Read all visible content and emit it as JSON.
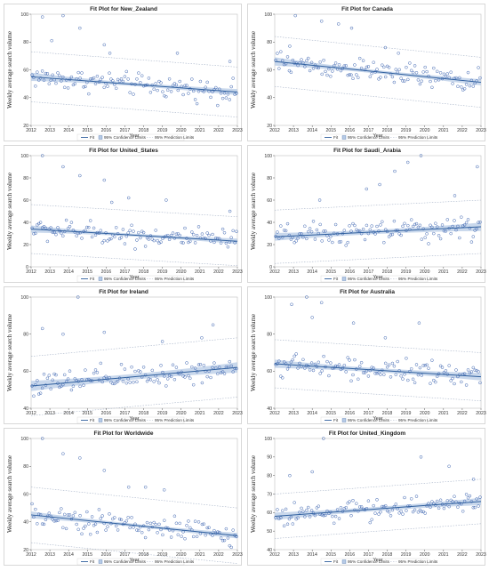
{
  "colors": {
    "band": "#b7cbe6",
    "fit": "#2f5f9e",
    "point": "#3b63b0",
    "prediction": "#a9b5c9",
    "frame": "#bfbfbf"
  },
  "legend": {
    "fit": "Fit",
    "confidence": "95% Confidence Limits",
    "prediction": "95% Prediction Limits"
  },
  "chart_data": [
    {
      "type": "scatter",
      "title": "Fit Plot for New_Zealand",
      "xlabel": "Year",
      "ylabel": "Weekly average search volume",
      "xlim": [
        2012,
        2023
      ],
      "ylim": [
        20,
        100
      ],
      "yticks": [
        20,
        40,
        60,
        80,
        100
      ],
      "xticks": [
        2012,
        2013,
        2014,
        2015,
        2016,
        2017,
        2018,
        2019,
        2020,
        2021,
        2022,
        2023
      ],
      "fit": {
        "x": [
          2012,
          2023
        ],
        "y": [
          55,
          44
        ]
      },
      "confidence_halfwidth": [
        3,
        2.2
      ],
      "prediction": {
        "lower": [
          37,
          26
        ],
        "upper": [
          73,
          62
        ]
      },
      "outliers": {
        "x": [
          2012.6,
          2013.7,
          2014.6,
          2015.9,
          2016.2,
          2013.1,
          2019.8,
          2022.6
        ],
        "y": [
          98,
          99,
          90,
          78,
          72,
          81,
          72,
          66
        ]
      }
    },
    {
      "type": "scatter",
      "title": "Fit Plot for Canada",
      "xlabel": "Year",
      "ylabel": "Weekly average search volume",
      "xlim": [
        2012,
        2023
      ],
      "ylim": [
        20,
        100
      ],
      "yticks": [
        20,
        40,
        60,
        80,
        100
      ],
      "xticks": [
        2012,
        2013,
        2014,
        2015,
        2016,
        2017,
        2018,
        2019,
        2020,
        2021,
        2022,
        2023
      ],
      "fit": {
        "x": [
          2012,
          2023
        ],
        "y": [
          66,
          51
        ]
      },
      "confidence_halfwidth": [
        3,
        2.2
      ],
      "prediction": {
        "lower": [
          48,
          33
        ],
        "upper": [
          84,
          69
        ]
      },
      "outliers": {
        "x": [
          2013.1,
          2014.5,
          2015.4,
          2016.1,
          2017.9,
          2018.6,
          2012.8
        ],
        "y": [
          99,
          95,
          93,
          90,
          76,
          72,
          77
        ]
      }
    },
    {
      "type": "scatter",
      "title": "Fit Plot for United_States",
      "xlabel": "Year",
      "ylabel": "Weekly average search volume",
      "xlim": [
        2012,
        2023
      ],
      "ylim": [
        0,
        100
      ],
      "yticks": [
        0,
        20,
        40,
        60,
        80,
        100
      ],
      "xticks": [
        2012,
        2013,
        2014,
        2015,
        2016,
        2017,
        2018,
        2019,
        2020,
        2021,
        2022,
        2023
      ],
      "fit": {
        "x": [
          2012,
          2023
        ],
        "y": [
          34,
          23
        ]
      },
      "confidence_halfwidth": [
        3.2,
        2.4
      ],
      "prediction": {
        "lower": [
          12,
          1
        ],
        "upper": [
          56,
          45
        ]
      },
      "outliers": {
        "x": [
          2012.6,
          2013.7,
          2014.6,
          2015.9,
          2017.2,
          2019.2,
          2022.6,
          2016.3
        ],
        "y": [
          100,
          90,
          82,
          78,
          62,
          60,
          50,
          58
        ]
      }
    },
    {
      "type": "scatter",
      "title": "Fit Plot for Saudi_Arabia",
      "xlabel": "Year",
      "ylabel": "Weekly average search volume",
      "xlim": [
        2012,
        2023
      ],
      "ylim": [
        0,
        100
      ],
      "yticks": [
        0,
        20,
        40,
        60,
        80,
        100
      ],
      "xticks": [
        2012,
        2013,
        2014,
        2015,
        2016,
        2017,
        2018,
        2019,
        2020,
        2021,
        2022,
        2023
      ],
      "fit": {
        "x": [
          2012,
          2023
        ],
        "y": [
          27,
          36
        ]
      },
      "confidence_halfwidth": [
        3.5,
        3.8
      ],
      "prediction": {
        "lower": [
          3,
          12
        ],
        "upper": [
          51,
          60
        ]
      },
      "outliers": {
        "x": [
          2019.8,
          2019.1,
          2018.4,
          2017.6,
          2022.8,
          2016.9,
          2014.4,
          2021.6
        ],
        "y": [
          100,
          94,
          86,
          74,
          90,
          70,
          60,
          64
        ]
      }
    },
    {
      "type": "scatter",
      "title": "Fit Plot for Ireland",
      "xlabel": "Year",
      "ylabel": "Weekly average search volume",
      "xlim": [
        2012,
        2023
      ],
      "ylim": [
        40,
        100
      ],
      "yticks": [
        40,
        60,
        80,
        100
      ],
      "xticks": [
        2012,
        2013,
        2014,
        2015,
        2016,
        2017,
        2018,
        2019,
        2020,
        2021,
        2022,
        2023
      ],
      "fit": {
        "x": [
          2012,
          2023
        ],
        "y": [
          52,
          62
        ]
      },
      "confidence_halfwidth": [
        2.8,
        2.8
      ],
      "prediction": {
        "lower": [
          36,
          46
        ],
        "upper": [
          68,
          78
        ]
      },
      "outliers": {
        "x": [
          2014.5,
          2012.6,
          2013.7,
          2021.7,
          2021.1,
          2019.0,
          2015.9
        ],
        "y": [
          100,
          83,
          80,
          85,
          78,
          76,
          81
        ]
      }
    },
    {
      "type": "scatter",
      "title": "Fit Plot for Australia",
      "xlabel": "Year",
      "ylabel": "Weekly average search volume",
      "xlim": [
        2012,
        2023
      ],
      "ylim": [
        40,
        100
      ],
      "yticks": [
        40,
        60,
        80,
        100
      ],
      "xticks": [
        2012,
        2013,
        2014,
        2015,
        2016,
        2017,
        2018,
        2019,
        2020,
        2021,
        2022,
        2023
      ],
      "fit": {
        "x": [
          2012,
          2023
        ],
        "y": [
          64,
          57
        ]
      },
      "confidence_halfwidth": [
        2.2,
        2.0
      ],
      "prediction": {
        "lower": [
          51,
          44
        ],
        "upper": [
          77,
          70
        ]
      },
      "outliers": {
        "x": [
          2013.7,
          2014.5,
          2012.9,
          2014.0,
          2016.2,
          2017.9,
          2019.7
        ],
        "y": [
          100,
          97,
          96,
          89,
          86,
          78,
          86
        ]
      }
    },
    {
      "type": "scatter",
      "title": "Fit Plot for Worldwide",
      "xlabel": "Year",
      "ylabel": "Weekly average search volume",
      "xlim": [
        2012,
        2023
      ],
      "ylim": [
        20,
        100
      ],
      "yticks": [
        20,
        40,
        60,
        80,
        100
      ],
      "xticks": [
        2012,
        2013,
        2014,
        2015,
        2016,
        2017,
        2018,
        2019,
        2020,
        2021,
        2022,
        2023
      ],
      "fit": {
        "x": [
          2012,
          2023
        ],
        "y": [
          45,
          30
        ]
      },
      "confidence_halfwidth": [
        2.5,
        2.0
      ],
      "prediction": {
        "lower": [
          25,
          10
        ],
        "upper": [
          65,
          50
        ]
      },
      "outliers": {
        "x": [
          2012.6,
          2013.7,
          2014.6,
          2015.9,
          2017.2,
          2018.1,
          2019.1
        ],
        "y": [
          100,
          89,
          86,
          77,
          65,
          65,
          63
        ]
      }
    },
    {
      "type": "scatter",
      "title": "Fit Plot for United_Kingdom",
      "xlabel": "Year",
      "ylabel": "Weekly average search volume",
      "xlim": [
        2012,
        2023
      ],
      "ylim": [
        40,
        100
      ],
      "yticks": [
        40,
        50,
        60,
        70,
        80,
        90,
        100
      ],
      "xticks": [
        2012,
        2013,
        2014,
        2015,
        2016,
        2017,
        2018,
        2019,
        2020,
        2021,
        2022,
        2023
      ],
      "fit": {
        "x": [
          2012,
          2023
        ],
        "y": [
          58,
          66
        ]
      },
      "confidence_halfwidth": [
        2.0,
        2.0
      ],
      "prediction": {
        "lower": [
          46,
          54
        ],
        "upper": [
          70,
          78
        ]
      },
      "outliers": {
        "x": [
          2014.6,
          2019.8,
          2021.3,
          2012.8,
          2014.0,
          2022.6
        ],
        "y": [
          100,
          90,
          85,
          80,
          82,
          78
        ]
      }
    }
  ]
}
